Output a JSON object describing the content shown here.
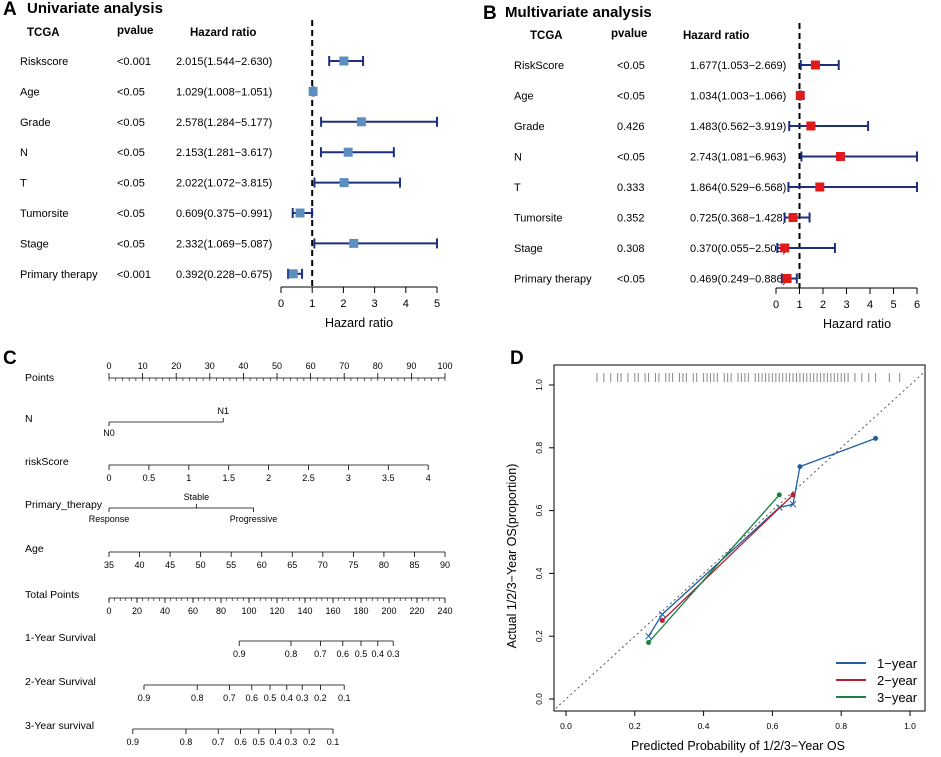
{
  "colors": {
    "uni_box": "#5b8fc0",
    "multi_box": "#e31a1c",
    "ci_line": "#1f2f80",
    "year1": "#1f5fa0",
    "year2": "#b32030",
    "year3": "#1a8040"
  },
  "chart_data": [
    {
      "id": "A",
      "panel_label": "A",
      "type": "forest",
      "title": "Univariate analysis",
      "columns": [
        "TCGA",
        "pvalue",
        "Hazard ratio"
      ],
      "xlabel": "Hazard ratio",
      "xlim": [
        0,
        5
      ],
      "xticks": [
        0,
        1,
        2,
        3,
        4,
        5
      ],
      "rows": [
        {
          "name": "Riskscore",
          "pvalue": "<0.001",
          "hr_text": "2.015(1.544−2.630)",
          "hr": 2.015,
          "lo": 1.544,
          "hi": 2.63
        },
        {
          "name": "Age",
          "pvalue": "<0.05",
          "hr_text": "1.029(1.008−1.051)",
          "hr": 1.029,
          "lo": 1.008,
          "hi": 1.051
        },
        {
          "name": "Grade",
          "pvalue": "<0.05",
          "hr_text": "2.578(1.284−5.177)",
          "hr": 2.578,
          "lo": 1.284,
          "hi": 5.177
        },
        {
          "name": "N",
          "pvalue": "<0.05",
          "hr_text": "2.153(1.281−3.617)",
          "hr": 2.153,
          "lo": 1.281,
          "hi": 3.617
        },
        {
          "name": "T",
          "pvalue": "<0.05",
          "hr_text": "2.022(1.072−3.815)",
          "hr": 2.022,
          "lo": 1.072,
          "hi": 3.815
        },
        {
          "name": "Tumorsite",
          "pvalue": "<0.05",
          "hr_text": "0.609(0.375−0.991)",
          "hr": 0.609,
          "lo": 0.375,
          "hi": 0.991
        },
        {
          "name": "Stage",
          "pvalue": "<0.05",
          "hr_text": "2.332(1.069−5.087)",
          "hr": 2.332,
          "lo": 1.069,
          "hi": 5.087
        },
        {
          "name": "Primary therapy",
          "pvalue": "<0.001",
          "hr_text": "0.392(0.228−0.675)",
          "hr": 0.392,
          "lo": 0.228,
          "hi": 0.675
        }
      ]
    },
    {
      "id": "B",
      "panel_label": "B",
      "type": "forest",
      "title": "Multivariate analysis",
      "columns": [
        "TCGA",
        "pvalue",
        "Hazard ratio"
      ],
      "xlabel": "Hazard ratio",
      "xlim": [
        0,
        6
      ],
      "xticks": [
        0,
        1,
        2,
        3,
        4,
        5,
        6
      ],
      "rows": [
        {
          "name": "RiskScore",
          "pvalue": "<0.05",
          "hr_text": "1.677(1.053−2.669)",
          "hr": 1.677,
          "lo": 1.053,
          "hi": 2.669
        },
        {
          "name": "Age",
          "pvalue": "<0.05",
          "hr_text": "1.034(1.003−1.066)",
          "hr": 1.034,
          "lo": 1.003,
          "hi": 1.066
        },
        {
          "name": "Grade",
          "pvalue": "0.426",
          "hr_text": "1.483(0.562−3.919)",
          "hr": 1.483,
          "lo": 0.562,
          "hi": 3.919
        },
        {
          "name": "N",
          "pvalue": "<0.05",
          "hr_text": "2.743(1.081−6.963)",
          "hr": 2.743,
          "lo": 1.081,
          "hi": 6.963
        },
        {
          "name": "T",
          "pvalue": "0.333",
          "hr_text": "1.864(0.529−6.568)",
          "hr": 1.864,
          "lo": 0.529,
          "hi": 6.568
        },
        {
          "name": "Tumorsite",
          "pvalue": "0.352",
          "hr_text": "0.725(0.368−1.428)",
          "hr": 0.725,
          "lo": 0.368,
          "hi": 1.428
        },
        {
          "name": "Stage",
          "pvalue": "0.308",
          "hr_text": "0.370(0.055−2.508)",
          "hr": 0.37,
          "lo": 0.055,
          "hi": 2.508
        },
        {
          "name": "Primary therapy",
          "pvalue": "<0.05",
          "hr_text": "0.469(0.249−0.886)",
          "hr": 0.469,
          "lo": 0.249,
          "hi": 0.886
        }
      ]
    },
    {
      "id": "C",
      "panel_label": "C",
      "type": "nomogram",
      "rows": [
        {
          "label": "Points",
          "scale": [
            0,
            100
          ],
          "ticks": [
            0,
            10,
            20,
            30,
            40,
            50,
            60,
            70,
            80,
            90,
            100
          ],
          "tick_labels": [
            "0",
            "10",
            "20",
            "30",
            "40",
            "50",
            "60",
            "70",
            "80",
            "90",
            "100"
          ],
          "minor_step": 2
        },
        {
          "label": "N",
          "categorical": true,
          "points_range": [
            0,
            34
          ],
          "levels": [
            {
              "name": "N0",
              "points": 0,
              "side": "below"
            },
            {
              "name": "N1",
              "points": 34,
              "side": "above"
            }
          ]
        },
        {
          "label": "riskScore",
          "scale": [
            0,
            4
          ],
          "points_range": [
            0,
            95
          ],
          "ticks": [
            0,
            0.5,
            1,
            1.5,
            2,
            2.5,
            3,
            3.5,
            4
          ],
          "tick_labels": [
            "0",
            "0.5",
            "1",
            "1.5",
            "2",
            "2.5",
            "3",
            "3.5",
            "4"
          ]
        },
        {
          "label": "Primary_therapy",
          "categorical": true,
          "points_range": [
            0,
            43
          ],
          "levels": [
            {
              "name": "Response",
              "points": 0,
              "side": "below"
            },
            {
              "name": "Stable",
              "points": 26,
              "side": "above"
            },
            {
              "name": "Progressive",
              "points": 43,
              "side": "below"
            }
          ]
        },
        {
          "label": "Age",
          "scale": [
            35,
            90
          ],
          "points_range": [
            0,
            100
          ],
          "ticks": [
            35,
            40,
            45,
            50,
            55,
            60,
            65,
            70,
            75,
            80,
            85,
            90
          ],
          "tick_labels": [
            "35",
            "40",
            "45",
            "50",
            "55",
            "60",
            "65",
            "70",
            "75",
            "80",
            "85",
            "90"
          ]
        },
        {
          "label": "Total Points",
          "scale": [
            0,
            240
          ],
          "ticks": [
            0,
            20,
            40,
            60,
            80,
            100,
            120,
            140,
            160,
            180,
            200,
            220,
            240
          ],
          "tick_labels": [
            "0",
            "20",
            "40",
            "60",
            "80",
            "100",
            "120",
            "140",
            "160",
            "180",
            "200",
            "220",
            "240"
          ],
          "minor_step": 4
        },
        {
          "label": "1-Year Survival",
          "ticks": [
            0.9,
            0.8,
            0.7,
            0.6,
            0.5,
            0.4,
            0.3
          ],
          "tick_labels": [
            "0.9",
            "0.8",
            "0.7",
            "0.6",
            "0.5",
            "0.4",
            "0.3"
          ],
          "total_points": [
            93,
            130,
            151,
            167,
            180,
            192,
            203
          ]
        },
        {
          "label": "2-Year Survival",
          "ticks": [
            0.9,
            0.8,
            0.7,
            0.6,
            0.5,
            0.4,
            0.3,
            0.2,
            0.1
          ],
          "tick_labels": [
            "0.9",
            "0.8",
            "0.7",
            "0.6",
            "0.5",
            "0.4",
            "0.3",
            "0.2",
            "0.1"
          ],
          "total_points": [
            25,
            63,
            86,
            102,
            115,
            127,
            138,
            151,
            168
          ]
        },
        {
          "label": "3-Year survival",
          "ticks": [
            0.9,
            0.8,
            0.7,
            0.6,
            0.5,
            0.4,
            0.3,
            0.2,
            0.1
          ],
          "tick_labels": [
            "0.9",
            "0.8",
            "0.7",
            "0.6",
            "0.5",
            "0.4",
            "0.3",
            "0.2",
            "0.1"
          ],
          "total_points": [
            17,
            55,
            78,
            94,
            107,
            119,
            130,
            143,
            160
          ]
        }
      ]
    },
    {
      "id": "D",
      "panel_label": "D",
      "type": "line",
      "xlabel": "Predicted Probability of 1/2/3−Year OS",
      "ylabel": "Actual 1/2/3−Year OS(proportion)",
      "xlim": [
        0,
        1
      ],
      "ylim": [
        0,
        1
      ],
      "xticks": [
        0,
        0.2,
        0.4,
        0.6,
        0.8,
        1
      ],
      "xtick_labels": [
        "0.0",
        "0.2",
        "0.4",
        "0.6",
        "0.8",
        "1.0"
      ],
      "yticks": [
        0,
        0.2,
        0.4,
        0.6,
        0.8,
        1
      ],
      "ytick_labels": [
        "0.0",
        "0.2",
        "0.4",
        "0.6",
        "0.8",
        "1.0"
      ],
      "reference": "diagonal dotted line y = x",
      "legend": "bottom-right",
      "series": [
        {
          "name": "1−year",
          "color_key": "year1",
          "x": [
            0.24,
            0.28,
            0.62,
            0.66,
            0.68,
            0.9
          ],
          "y": [
            0.2,
            0.27,
            0.61,
            0.62,
            0.74,
            0.83
          ],
          "markers": [
            {
              "shape": "x",
              "x": 0.24,
              "y": 0.2
            },
            {
              "shape": "x",
              "x": 0.28,
              "y": 0.27
            },
            {
              "shape": "x",
              "x": 0.62,
              "y": 0.61
            },
            {
              "shape": "x",
              "x": 0.66,
              "y": 0.62
            },
            {
              "shape": "dot",
              "x": 0.68,
              "y": 0.74
            },
            {
              "shape": "dot",
              "x": 0.9,
              "y": 0.83
            }
          ]
        },
        {
          "name": "2−year",
          "color_key": "year2",
          "x": [
            0.28,
            0.66
          ],
          "y": [
            0.25,
            0.65
          ],
          "markers": [
            {
              "shape": "dot",
              "x": 0.28,
              "y": 0.25
            },
            {
              "shape": "dot",
              "x": 0.66,
              "y": 0.65
            }
          ]
        },
        {
          "name": "3−year",
          "color_key": "year3",
          "x": [
            0.24,
            0.62
          ],
          "y": [
            0.18,
            0.65
          ],
          "markers": [
            {
              "shape": "dot",
              "x": 0.24,
              "y": 0.18
            },
            {
              "shape": "dot",
              "x": 0.62,
              "y": 0.65
            }
          ]
        }
      ],
      "rug_x": [
        0.09,
        0.11,
        0.13,
        0.15,
        0.16,
        0.18,
        0.2,
        0.21,
        0.23,
        0.24,
        0.26,
        0.27,
        0.29,
        0.3,
        0.31,
        0.33,
        0.34,
        0.35,
        0.37,
        0.38,
        0.4,
        0.41,
        0.42,
        0.43,
        0.44,
        0.46,
        0.47,
        0.48,
        0.5,
        0.51,
        0.52,
        0.53,
        0.55,
        0.56,
        0.57,
        0.58,
        0.59,
        0.6,
        0.61,
        0.62,
        0.63,
        0.64,
        0.65,
        0.66,
        0.67,
        0.68,
        0.69,
        0.7,
        0.71,
        0.72,
        0.73,
        0.74,
        0.75,
        0.76,
        0.77,
        0.78,
        0.79,
        0.8,
        0.81,
        0.82,
        0.84,
        0.86,
        0.88,
        0.9,
        0.94,
        0.97
      ]
    }
  ]
}
